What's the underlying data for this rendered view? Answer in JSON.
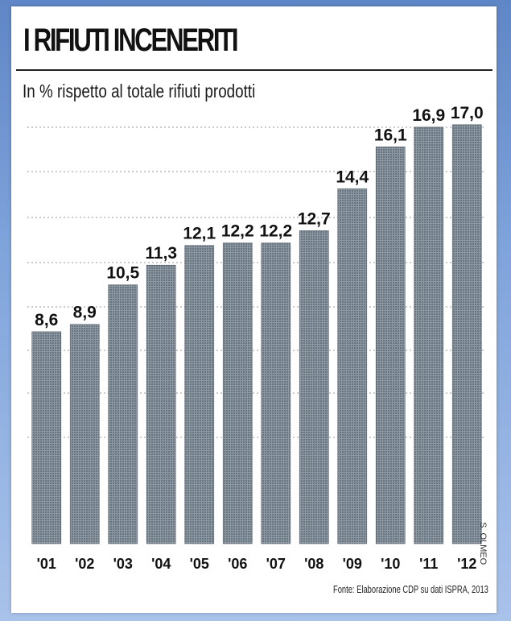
{
  "chart_data": {
    "type": "bar",
    "title": "I RIFIUTI INCENERITI",
    "subtitle": "In % rispetto al totale rifiuti prodotti",
    "categories": [
      "'01",
      "'02",
      "'03",
      "'04",
      "'05",
      "'06",
      "'07",
      "'08",
      "'09",
      "'10",
      "'11",
      "'12"
    ],
    "values": [
      8.6,
      8.9,
      10.5,
      11.3,
      12.1,
      12.2,
      12.2,
      12.7,
      14.4,
      16.1,
      16.9,
      17.0
    ],
    "value_labels": [
      "8,6",
      "8,9",
      "10,5",
      "11,3",
      "12,1",
      "12,2",
      "12,2",
      "12,7",
      "14,4",
      "16,1",
      "16,9",
      "17,0"
    ],
    "xlabel": "",
    "ylabel": "",
    "grid": true,
    "bar_color": "#7a8794"
  },
  "source": "Fonte: Elaborazione CDP su dati ISPRA, 2013",
  "credit": "S. OLMEO"
}
